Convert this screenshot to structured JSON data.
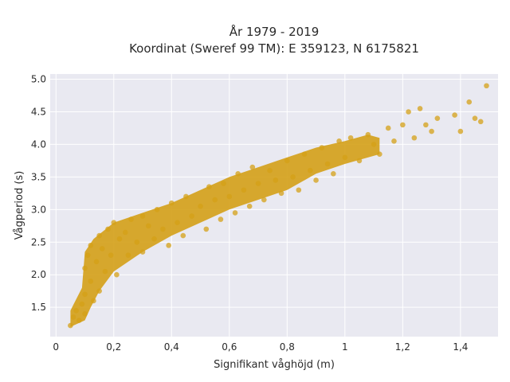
{
  "chart_data": {
    "type": "scatter",
    "title": "År 1979 - 2019",
    "subtitle": "Koordinat (Sweref 99 TM): E 359123, N 6175821",
    "xlabel": "Signifikant våghöjd (m)",
    "ylabel": "Vågperiod (s)",
    "xlim": [
      -0.02,
      1.53
    ],
    "ylim": [
      1.05,
      5.08
    ],
    "x_ticks": [
      0,
      0.2,
      0.4,
      0.6,
      0.8,
      1,
      1.2,
      1.4
    ],
    "x_tick_labels": [
      "0",
      "0,2",
      "0,4",
      "0,6",
      "0,8",
      "1",
      "1,2",
      "1,4"
    ],
    "y_ticks": [
      1.5,
      2.0,
      2.5,
      3.0,
      3.5,
      4.0,
      4.5,
      5.0
    ],
    "y_tick_labels": [
      "1.5",
      "2.0",
      "2.5",
      "3.0",
      "3.5",
      "4.0",
      "4.5",
      "5.0"
    ],
    "grid": true,
    "legend": "none",
    "colors": {
      "marker": "#d4a017",
      "plot_bg": "#e9e9f1",
      "grid": "#ffffff"
    },
    "series": [
      {
        "points": [
          [
            0.05,
            1.22
          ],
          [
            0.06,
            1.35
          ],
          [
            0.07,
            1.45
          ],
          [
            0.08,
            1.3
          ],
          [
            0.09,
            1.55
          ],
          [
            0.1,
            1.4
          ],
          [
            0.1,
            1.7
          ],
          [
            0.1,
            2.1
          ],
          [
            0.11,
            2.3
          ],
          [
            0.12,
            1.9
          ],
          [
            0.12,
            2.45
          ],
          [
            0.13,
            1.6
          ],
          [
            0.14,
            2.2
          ],
          [
            0.15,
            2.6
          ],
          [
            0.15,
            1.75
          ],
          [
            0.16,
            2.4
          ],
          [
            0.17,
            2.05
          ],
          [
            0.18,
            2.7
          ],
          [
            0.19,
            2.3
          ],
          [
            0.2,
            2.8
          ],
          [
            0.21,
            2.0
          ],
          [
            0.22,
            2.55
          ],
          [
            0.24,
            2.65
          ],
          [
            0.25,
            2.3
          ],
          [
            0.26,
            2.85
          ],
          [
            0.28,
            2.5
          ],
          [
            0.3,
            2.9
          ],
          [
            0.3,
            2.35
          ],
          [
            0.32,
            2.75
          ],
          [
            0.34,
            2.55
          ],
          [
            0.35,
            3.0
          ],
          [
            0.37,
            2.7
          ],
          [
            0.39,
            2.45
          ],
          [
            0.4,
            3.1
          ],
          [
            0.42,
            2.8
          ],
          [
            0.44,
            2.6
          ],
          [
            0.45,
            3.2
          ],
          [
            0.47,
            2.9
          ],
          [
            0.5,
            3.05
          ],
          [
            0.52,
            2.7
          ],
          [
            0.53,
            3.35
          ],
          [
            0.55,
            3.15
          ],
          [
            0.57,
            2.85
          ],
          [
            0.58,
            3.4
          ],
          [
            0.6,
            3.2
          ],
          [
            0.62,
            2.95
          ],
          [
            0.63,
            3.55
          ],
          [
            0.65,
            3.3
          ],
          [
            0.67,
            3.05
          ],
          [
            0.68,
            3.65
          ],
          [
            0.7,
            3.4
          ],
          [
            0.72,
            3.15
          ],
          [
            0.74,
            3.6
          ],
          [
            0.76,
            3.45
          ],
          [
            0.78,
            3.25
          ],
          [
            0.8,
            3.75
          ],
          [
            0.82,
            3.5
          ],
          [
            0.84,
            3.3
          ],
          [
            0.86,
            3.85
          ],
          [
            0.88,
            3.6
          ],
          [
            0.9,
            3.45
          ],
          [
            0.92,
            3.95
          ],
          [
            0.94,
            3.7
          ],
          [
            0.96,
            3.55
          ],
          [
            0.98,
            4.05
          ],
          [
            1.0,
            3.8
          ],
          [
            1.02,
            4.1
          ],
          [
            1.05,
            3.75
          ],
          [
            1.08,
            4.15
          ],
          [
            1.1,
            4.0
          ],
          [
            1.12,
            3.85
          ],
          [
            1.15,
            4.25
          ],
          [
            1.17,
            4.05
          ],
          [
            1.2,
            4.3
          ],
          [
            1.22,
            4.5
          ],
          [
            1.24,
            4.1
          ],
          [
            1.26,
            4.55
          ],
          [
            1.28,
            4.3
          ],
          [
            1.3,
            4.2
          ],
          [
            1.32,
            4.4
          ],
          [
            1.38,
            4.45
          ],
          [
            1.4,
            4.2
          ],
          [
            1.43,
            4.65
          ],
          [
            1.45,
            4.4
          ],
          [
            1.47,
            4.35
          ],
          [
            1.49,
            4.9
          ]
        ]
      }
    ]
  }
}
